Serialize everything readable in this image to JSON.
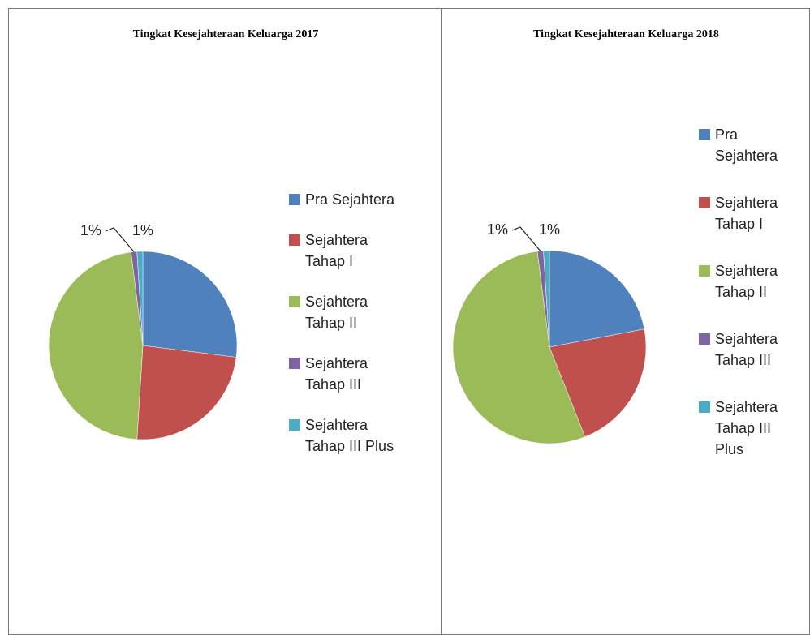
{
  "chart_data": [
    {
      "type": "pie",
      "title": "Tingkat Kesejahteraan Keluarga 2017",
      "categories": [
        "Pra Sejahtera",
        "Sejahtera Tahap I",
        "Sejahtera Tahap II",
        "Sejahtera Tahap III",
        "Sejahtera Tahap III Plus"
      ],
      "values": [
        27,
        24,
        47,
        1,
        1
      ],
      "value_labels": [
        "27%",
        "24%",
        "47%",
        "1%",
        "1%"
      ],
      "colors": [
        "#4f81bd",
        "#c0504d",
        "#9bbb59",
        "#8064a2",
        "#4bacc6"
      ],
      "legend": "right"
    },
    {
      "type": "pie",
      "title": "Tingkat Kesejahteraan Keluarga 2018",
      "categories": [
        "Pra Sejahtera",
        "Sejahtera Tahap I",
        "Sejahtera Tahap II",
        "Sejahtera Tahap III",
        "Sejahtera Tahap III Plus"
      ],
      "values": [
        22,
        22,
        54,
        1,
        1
      ],
      "value_labels": [
        "22%",
        "22%",
        "54%",
        "1%",
        "1%"
      ],
      "colors": [
        "#4f81bd",
        "#c0504d",
        "#9bbb59",
        "#8064a2",
        "#4bacc6"
      ],
      "legend": "right"
    }
  ]
}
